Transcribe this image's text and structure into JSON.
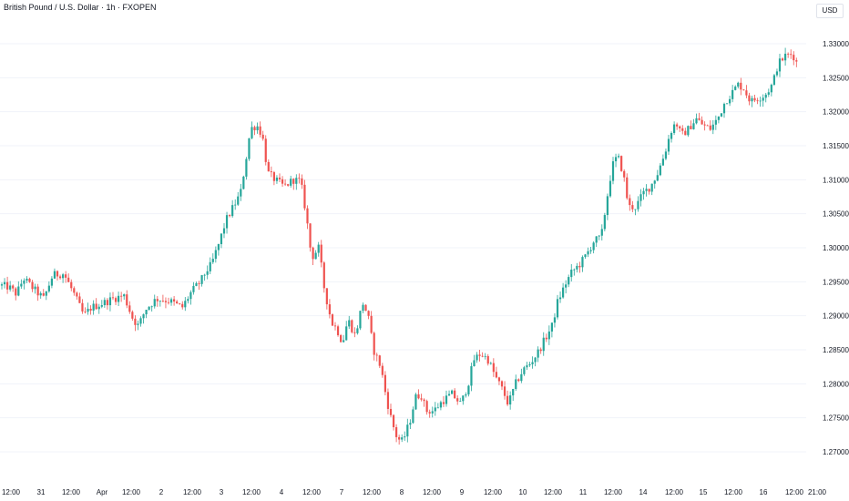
{
  "chart_data": {
    "type": "candlestick",
    "title": "British Pound / U.S. Dollar · 1h · FXOPEN",
    "currency": "USD",
    "y_axis": {
      "ticks": [
        "1.33000",
        "1.32500",
        "1.32000",
        "1.31500",
        "1.31000",
        "1.30500",
        "1.30000",
        "1.29500",
        "1.29000",
        "1.28500",
        "1.28000",
        "1.27500",
        "1.27000"
      ],
      "range": [
        1.2665,
        1.3325
      ]
    },
    "x_axis": {
      "ticks": [
        "12:00",
        "31",
        "12:00",
        "Apr",
        "12:00",
        "2",
        "12:00",
        "3",
        "12:00",
        "4",
        "12:00",
        "7",
        "12:00",
        "8",
        "12:00",
        "9",
        "12:00",
        "10",
        "12:00",
        "11",
        "12:00",
        "14",
        "12:00",
        "15",
        "12:00",
        "16",
        "12:00",
        "21:00"
      ]
    },
    "colors": {
      "up": "#26a69a",
      "down": "#ef5350"
    },
    "path_points": [
      [
        0,
        1.2945
      ],
      [
        10,
        1.2942
      ],
      [
        18,
        1.2932
      ],
      [
        26,
        1.2955
      ],
      [
        38,
        1.2938
      ],
      [
        48,
        1.2925
      ],
      [
        58,
        1.296
      ],
      [
        70,
        1.2962
      ],
      [
        82,
        1.293
      ],
      [
        92,
        1.29
      ],
      [
        100,
        1.2912
      ],
      [
        112,
        1.2918
      ],
      [
        124,
        1.2925
      ],
      [
        136,
        1.293
      ],
      [
        146,
        1.2895
      ],
      [
        152,
        1.2885
      ],
      [
        160,
        1.291
      ],
      [
        172,
        1.2925
      ],
      [
        186,
        1.2922
      ],
      [
        200,
        1.2912
      ],
      [
        210,
        1.2935
      ],
      [
        220,
        1.295
      ],
      [
        226,
        1.2965
      ],
      [
        232,
        1.2975
      ],
      [
        240,
        1.3005
      ],
      [
        248,
        1.304
      ],
      [
        256,
        1.306
      ],
      [
        264,
        1.308
      ],
      [
        270,
        1.313
      ],
      [
        275,
        1.3175
      ],
      [
        282,
        1.318
      ],
      [
        288,
        1.3165
      ],
      [
        294,
        1.311
      ],
      [
        302,
        1.31
      ],
      [
        312,
        1.309
      ],
      [
        322,
        1.31
      ],
      [
        330,
        1.3098
      ],
      [
        336,
        1.305
      ],
      [
        342,
        1.2985
      ],
      [
        350,
        1.3
      ],
      [
        356,
        1.294
      ],
      [
        364,
        1.289
      ],
      [
        370,
        1.288
      ],
      [
        376,
        1.286
      ],
      [
        382,
        1.2895
      ],
      [
        390,
        1.287
      ],
      [
        398,
        1.292
      ],
      [
        404,
        1.29
      ],
      [
        410,
        1.285
      ],
      [
        418,
        1.2825
      ],
      [
        424,
        1.278
      ],
      [
        430,
        1.2745
      ],
      [
        436,
        1.272
      ],
      [
        442,
        1.2715
      ],
      [
        450,
        1.2745
      ],
      [
        456,
        1.278
      ],
      [
        462,
        1.2785
      ],
      [
        468,
        1.276
      ],
      [
        476,
        1.276
      ],
      [
        486,
        1.2775
      ],
      [
        496,
        1.2785
      ],
      [
        506,
        1.277
      ],
      [
        514,
        1.28
      ],
      [
        520,
        1.2835
      ],
      [
        528,
        1.2845
      ],
      [
        536,
        1.2835
      ],
      [
        544,
        1.281
      ],
      [
        552,
        1.279
      ],
      [
        558,
        1.277
      ],
      [
        566,
        1.28
      ],
      [
        574,
        1.282
      ],
      [
        582,
        1.283
      ],
      [
        590,
        1.2845
      ],
      [
        598,
        1.2865
      ],
      [
        606,
        1.2885
      ],
      [
        612,
        1.292
      ],
      [
        620,
        1.2945
      ],
      [
        628,
        1.2965
      ],
      [
        636,
        1.2975
      ],
      [
        644,
        1.299
      ],
      [
        652,
        1.301
      ],
      [
        660,
        1.3015
      ],
      [
        666,
        1.307
      ],
      [
        672,
        1.312
      ],
      [
        678,
        1.3135
      ],
      [
        684,
        1.311
      ],
      [
        690,
        1.306
      ],
      [
        698,
        1.306
      ],
      [
        706,
        1.308
      ],
      [
        714,
        1.309
      ],
      [
        722,
        1.311
      ],
      [
        730,
        1.314
      ],
      [
        736,
        1.317
      ],
      [
        742,
        1.3185
      ],
      [
        748,
        1.3165
      ],
      [
        756,
        1.3175
      ],
      [
        764,
        1.319
      ],
      [
        772,
        1.318
      ],
      [
        780,
        1.3175
      ],
      [
        788,
        1.319
      ],
      [
        796,
        1.3215
      ],
      [
        802,
        1.3225
      ],
      [
        810,
        1.324
      ],
      [
        816,
        1.3235
      ],
      [
        824,
        1.3215
      ],
      [
        832,
        1.322
      ],
      [
        840,
        1.3225
      ],
      [
        848,
        1.324
      ],
      [
        854,
        1.327
      ],
      [
        862,
        1.3282
      ],
      [
        870,
        1.3285
      ],
      [
        876,
        1.3268
      ]
    ]
  }
}
